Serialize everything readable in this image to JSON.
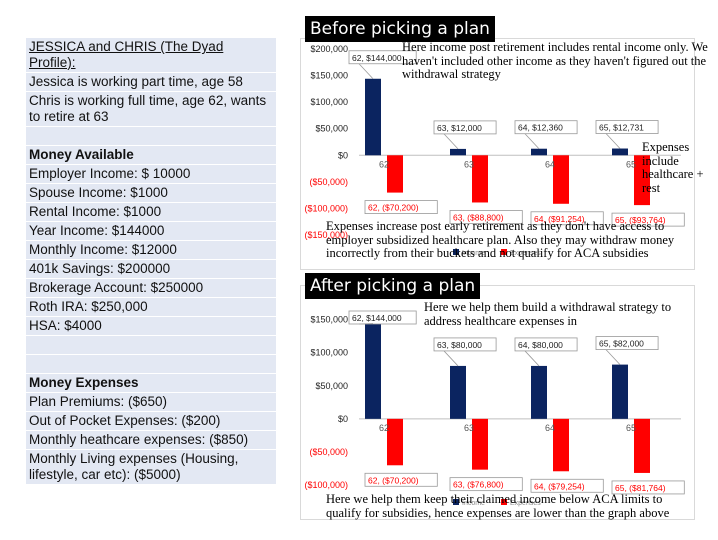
{
  "profile": {
    "heading": "JESSICA and CHRIS (The Dyad Profile):",
    "line1": "Jessica is working part time, age 58",
    "line2": "Chris is working full time, age 62, wants to retire at 63",
    "money_available_heading": "Money Available",
    "available": [
      "Employer Income: $ 10000",
      "Spouse Income: $1000",
      "Rental Income: $1000",
      "Year Income: $144000",
      "Monthly Income: $12000",
      "401k Savings: $200000",
      "Brokerage Account: $250000",
      "Roth IRA: $250,000",
      "HSA: $4000"
    ],
    "money_expenses_heading": "Money Expenses",
    "expenses": [
      "Plan Premiums: ($650)",
      "Out of Pocket Expenses: ($200)",
      "Monthly heathcare expenses: ($850)",
      "Monthly Living expenses (Housing, lifestyle, car etc): ($5000)"
    ]
  },
  "before": {
    "title": "Before picking a plan",
    "note_top": "Here income post retirement includes rental income only. We haven't included other income as they haven't figured out the withdrawal strategy",
    "note_right": "Expenses include healthcare + rest",
    "note_bottom": "Expenses increase post early retirement as they don't have access to employer subsidized healthcare plan. Also they may withdraw money incorrectly from their buckets and not qualify for ACA subsidies"
  },
  "after": {
    "title": "After picking a plan",
    "note_top": "Here we help them build a withdrawal strategy to address healthcare expenses in",
    "note_bottom": "Here we help them keep their claimed income below ACA limits to qualify for subsidies, hence expenses are lower than the graph above"
  },
  "chart_data": [
    {
      "type": "bar",
      "categories": [
        "62",
        "63",
        "64",
        "65"
      ],
      "series": [
        {
          "name": "Income",
          "values": [
            144000,
            12000,
            12360,
            12731
          ],
          "color": "#0b2460"
        },
        {
          "name": "Expenses",
          "values": [
            -70200,
            -88800,
            -91254,
            -93764
          ],
          "color": "#ff0000"
        }
      ],
      "data_labels": {
        "Income": [
          "62, $144,000",
          "63, $12,000",
          "64, $12,360",
          "65, $12,731"
        ],
        "Expenses": [
          "62, ($70,200)",
          "63, ($88,800)",
          "64, ($91,254)",
          "65, ($93,764)"
        ]
      },
      "y_ticks": [
        200000,
        150000,
        100000,
        50000,
        0,
        -50000,
        -100000,
        -150000
      ],
      "y_tick_labels": [
        "$200,000",
        "$150,000",
        "$100,000",
        "$50,000",
        "$0",
        "($50,000)",
        "($100,000)",
        "($150,000)"
      ],
      "ylim": [
        -150000,
        200000
      ],
      "grid": false,
      "legend": "bottom"
    },
    {
      "type": "bar",
      "categories": [
        "62",
        "63",
        "64",
        "65"
      ],
      "series": [
        {
          "name": "Income",
          "values": [
            144000,
            80000,
            80000,
            82000
          ],
          "color": "#0b2460"
        },
        {
          "name": "Expenses",
          "values": [
            -70200,
            -76800,
            -79254,
            -81764
          ],
          "color": "#ff0000"
        }
      ],
      "data_labels": {
        "Income": [
          "62, $144,000",
          "63, $80,000",
          "64, $80,000",
          "65, $82,000"
        ],
        "Expenses": [
          "62, ($70,200)",
          "63, ($76,800)",
          "64, ($79,254)",
          "65, ($81,764)"
        ]
      },
      "y_ticks": [
        150000,
        100000,
        50000,
        0,
        -50000,
        -100000
      ],
      "y_tick_labels": [
        "$150,000",
        "$100,000",
        "$50,000",
        "$0",
        "($50,000)",
        "($100,000)"
      ],
      "ylim": [
        -100000,
        160000
      ],
      "grid": false,
      "legend": "bottom"
    }
  ]
}
